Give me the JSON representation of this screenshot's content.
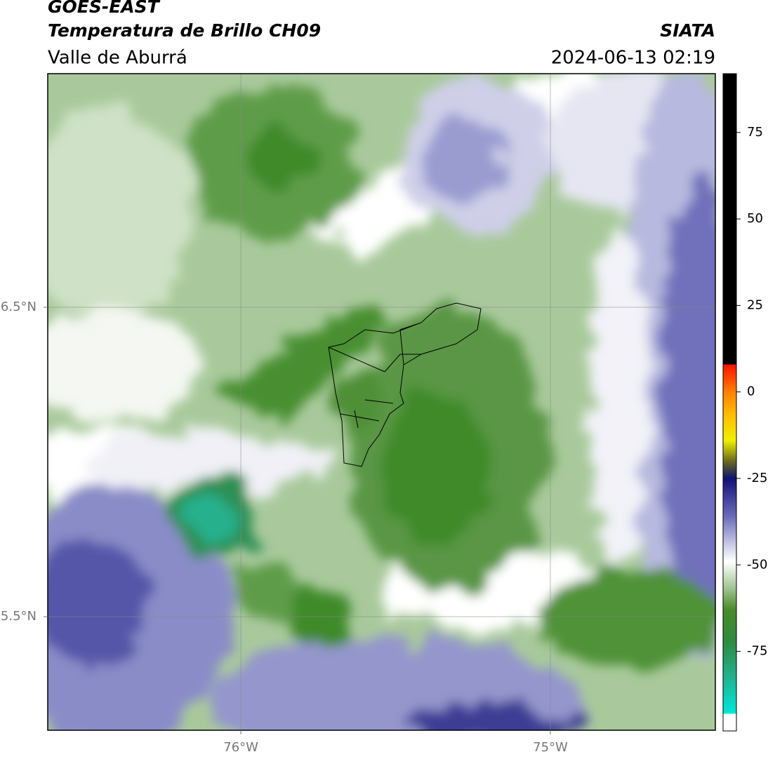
{
  "header": {
    "satellite": "GOES-EAST",
    "product": "Temperatura de Brillo CH09",
    "agency": "SIATA",
    "region": "Valle de Aburrá",
    "timestamp": "2024-06-13 02:19"
  },
  "map": {
    "xlim": [
      -76.624,
      -74.467
    ],
    "ylim": [
      5.133,
      7.255
    ],
    "xticks": [
      {
        "value": -76,
        "label": "76°W"
      },
      {
        "value": -75,
        "label": "75°W"
      }
    ],
    "yticks": [
      {
        "value": 6.5,
        "label": "6.5°N"
      },
      {
        "value": 5.5,
        "label": "5.5°N"
      }
    ],
    "grid": true
  },
  "colorbar": {
    "lim": [
      -98,
      92
    ],
    "ticks": [
      75,
      50,
      25,
      0,
      -25,
      -50,
      -75
    ],
    "colorscale": [
      {
        "value": -98,
        "color": "#ffffff"
      },
      {
        "value": -93,
        "color": "#ffffff"
      },
      {
        "value": -93,
        "color": "#00e8d8"
      },
      {
        "value": -82,
        "color": "#22b08c"
      },
      {
        "value": -72,
        "color": "#2f8a3e"
      },
      {
        "value": -63,
        "color": "#4a8a2a"
      },
      {
        "value": -57,
        "color": "#9cc28e"
      },
      {
        "value": -52,
        "color": "#dde9d6"
      },
      {
        "value": -49,
        "color": "#ffffff"
      },
      {
        "value": -44,
        "color": "#c9c9e6"
      },
      {
        "value": -36,
        "color": "#6a6cb8"
      },
      {
        "value": -28,
        "color": "#2a2a8c"
      },
      {
        "value": -25,
        "color": "#101070"
      },
      {
        "value": -20,
        "color": "#6a6a20"
      },
      {
        "value": -14,
        "color": "#f0f000"
      },
      {
        "value": -7,
        "color": "#ffc000"
      },
      {
        "value": 0,
        "color": "#ff8000"
      },
      {
        "value": 8,
        "color": "#ff1000"
      },
      {
        "value": 8,
        "color": "#000000"
      },
      {
        "value": 92,
        "color": "#000000"
      }
    ]
  }
}
